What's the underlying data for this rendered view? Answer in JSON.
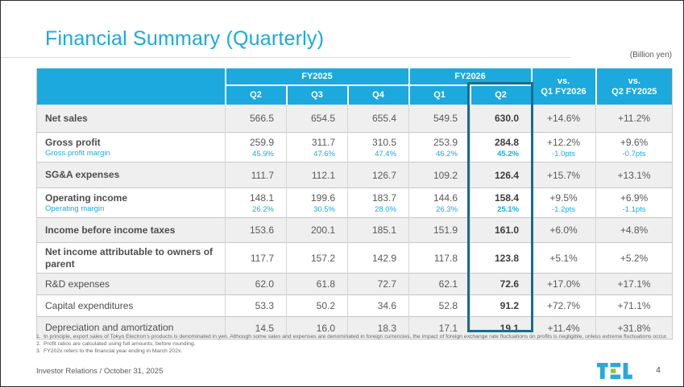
{
  "slide": {
    "title": "Financial Summary (Quarterly)",
    "unit_label": "(Billion yen)",
    "footnotes": [
      {
        "num": "1.",
        "text": "In principle, export sales of Tokyo Electron's products is denominated in yen. Although some sales and expenses are denominated in foreign currencies, the impact of foreign exchange rate fluctuations on profits is negligible, unless extreme fluctuations occur."
      },
      {
        "num": "2.",
        "text": "Profit ratios are calculated using full amounts, before rounding."
      },
      {
        "num": "3.",
        "text": "FY202x refers to the financial year ending in March 202x."
      }
    ],
    "footer": {
      "left_text": "Investor Relations / October 31, 2025",
      "logo_text": "TEL",
      "page_number": "4"
    }
  },
  "colors": {
    "accent_cyan": "#1BA9DE",
    "highlight_border": "#156E90",
    "logo_green": "#8DC63F"
  },
  "table": {
    "group_headers": [
      {
        "label": "FY2025"
      },
      {
        "label": "FY2026"
      }
    ],
    "quarter_headers": [
      "Q2",
      "Q3",
      "Q4",
      "Q1",
      "Q2"
    ],
    "vs_headers": [
      {
        "line1": "vs.",
        "line2": "Q1 FY2026"
      },
      {
        "line1": "vs.",
        "line2": "Q2 FY2025"
      }
    ],
    "highlighted_column": "FY2026 Q2",
    "rows": [
      {
        "label": "Net sales",
        "bold_label": true,
        "values": [
          "566.5",
          "654.5",
          "655.4",
          "549.5",
          "630.0",
          "+14.6%",
          "+11.2%"
        ]
      },
      {
        "label": "Gross profit",
        "bold_label": true,
        "sublabel": "Gross profit margin",
        "values": [
          "259.9",
          "311.7",
          "310.5",
          "253.9",
          "284.8",
          "+12.2%",
          "+9.6%"
        ],
        "subvalues": [
          "45.9%",
          "47.6%",
          "47.4%",
          "46.2%",
          "45.2%",
          "-1.0pts",
          "-0.7pts"
        ]
      },
      {
        "label": "SG&A expenses",
        "bold_label": true,
        "values": [
          "111.7",
          "112.1",
          "126.7",
          "109.2",
          "126.4",
          "+15.7%",
          "+13.1%"
        ]
      },
      {
        "label": "Operating income",
        "bold_label": true,
        "sublabel": "Operating margin",
        "values": [
          "148.1",
          "199.6",
          "183.7",
          "144.6",
          "158.4",
          "+9.5%",
          "+6.9%"
        ],
        "subvalues": [
          "26.2%",
          "30.5%",
          "28.0%",
          "26.3%",
          "25.1%",
          "-1.2pts",
          "-1.1pts"
        ]
      },
      {
        "label": "Income before income taxes",
        "bold_label": true,
        "values": [
          "153.6",
          "200.1",
          "185.1",
          "151.9",
          "161.0",
          "+6.0%",
          "+4.8%"
        ]
      },
      {
        "label": "Net income attributable to owners of parent",
        "bold_label": true,
        "values": [
          "117.7",
          "157.2",
          "142.9",
          "117.8",
          "123.8",
          "+5.1%",
          "+5.2%"
        ]
      },
      {
        "label": "R&D expenses",
        "bold_label": false,
        "values": [
          "62.0",
          "61.8",
          "72.7",
          "62.1",
          "72.6",
          "+17.0%",
          "+17.1%"
        ]
      },
      {
        "label": "Capital expenditures",
        "bold_label": false,
        "values": [
          "53.3",
          "50.2",
          "34.6",
          "52.8",
          "91.2",
          "+72.7%",
          "+71.1%"
        ]
      },
      {
        "label": "Depreciation and amortization",
        "bold_label": false,
        "values": [
          "14.5",
          "16.0",
          "18.3",
          "17.1",
          "19.1",
          "+11.4%",
          "+31.8%"
        ]
      }
    ]
  }
}
